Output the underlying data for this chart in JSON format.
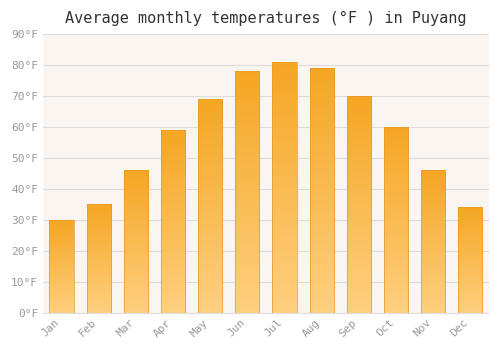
{
  "title": "Average monthly temperatures (°F ) in Puyang",
  "months": [
    "Jan",
    "Feb",
    "Mar",
    "Apr",
    "May",
    "Jun",
    "Jul",
    "Aug",
    "Sep",
    "Oct",
    "Nov",
    "Dec"
  ],
  "values": [
    30,
    35,
    46,
    59,
    69,
    78,
    81,
    79,
    70,
    60,
    46,
    34
  ],
  "bar_color_top": "#F5A623",
  "bar_color_bottom": "#FFD080",
  "background_color": "#FFFFFF",
  "plot_bg_color": "#FAF5F0",
  "grid_color": "#DDDDDD",
  "ylim": [
    0,
    90
  ],
  "ytick_step": 10,
  "title_fontsize": 11,
  "tick_fontsize": 8,
  "tick_label_color": "#999999",
  "font_family": "monospace",
  "bar_width": 0.65
}
